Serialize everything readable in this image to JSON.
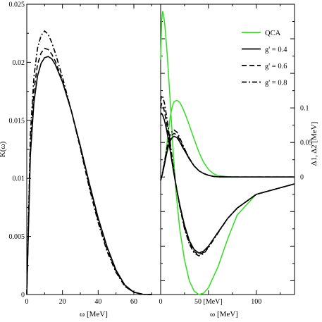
{
  "chart_data": [
    {
      "type": "line",
      "xlabel": "ω [MeV]",
      "ylabel": "K(ω)",
      "xlim": [
        0,
        75
      ],
      "ylim": [
        0,
        0.025
      ],
      "x_ticks": [
        0,
        20,
        40,
        60
      ],
      "x_tick_labels": [
        "0",
        "20",
        "40",
        "60"
      ],
      "y_ticks": [
        0,
        0.005,
        0.01,
        0.015,
        0.02,
        0.025
      ],
      "y_tick_labels": [
        "0",
        "0.005",
        "0.01",
        "0.015",
        "0.02",
        "0.025"
      ],
      "grid": false,
      "series": [
        {
          "name": "g' = 0.4",
          "color": "#000000",
          "dash": "solid",
          "x": [
            0,
            2,
            4,
            6,
            8,
            10,
            12,
            14,
            16,
            20,
            25,
            30,
            35,
            40,
            45,
            50,
            55,
            60,
            65,
            70
          ],
          "y": [
            0,
            0.012,
            0.0165,
            0.0188,
            0.0199,
            0.0204,
            0.0205,
            0.0203,
            0.0198,
            0.0183,
            0.0158,
            0.0128,
            0.0096,
            0.0066,
            0.0041,
            0.0021,
            0.0008,
            0.0002,
            2e-05,
            0
          ]
        },
        {
          "name": "g' = 0.6",
          "color": "#000000",
          "dash": "dashed",
          "x": [
            0,
            2,
            4,
            6,
            8,
            10,
            12,
            14,
            16,
            20,
            25,
            30,
            35,
            40,
            45,
            50,
            55,
            60,
            65,
            70
          ],
          "y": [
            0,
            0.0128,
            0.0175,
            0.0198,
            0.0208,
            0.0212,
            0.0211,
            0.0207,
            0.0201,
            0.0184,
            0.0158,
            0.0127,
            0.0094,
            0.0064,
            0.0039,
            0.002,
            0.0007,
            0.0002,
            2e-05,
            0
          ]
        },
        {
          "name": "g' = 0.8",
          "color": "#000000",
          "dash": "dashdot",
          "x": [
            0,
            2,
            4,
            6,
            8,
            10,
            12,
            14,
            16,
            20,
            25,
            30,
            35,
            40,
            45,
            50,
            55,
            60,
            65,
            70
          ],
          "y": [
            0,
            0.0138,
            0.0187,
            0.0212,
            0.0223,
            0.0227,
            0.0224,
            0.0217,
            0.0208,
            0.0187,
            0.0158,
            0.0126,
            0.0092,
            0.0062,
            0.0037,
            0.0019,
            0.0007,
            0.0002,
            2e-05,
            0
          ]
        }
      ]
    },
    {
      "type": "line",
      "xlabel": "ω [MeV]",
      "ylabel": "Δ1, Δ2 [MeV]",
      "xlim": [
        0,
        140
      ],
      "ylim": [
        -0.17,
        0.25
      ],
      "x_ticks": [
        0,
        50,
        100
      ],
      "x_tick_labels": [
        "0",
        "50 [MeV]",
        "100"
      ],
      "y_ticks": [
        0,
        0.05,
        0.1
      ],
      "y_tick_labels": [
        "0",
        "0.05",
        "0.1"
      ],
      "grid": false,
      "legend_position": "top-right",
      "series": [
        {
          "name": "QCA",
          "color": "#33dd22",
          "dash": "solid",
          "x": [
            0,
            1,
            2,
            3,
            4,
            5,
            7,
            10,
            13,
            16,
            20,
            25,
            30,
            35,
            40,
            45,
            50,
            60,
            70,
            80,
            100,
            140
          ],
          "y": [
            0.17,
            0.225,
            0.24,
            0.235,
            0.225,
            0.21,
            0.175,
            0.11,
            0.04,
            -0.02,
            -0.075,
            -0.12,
            -0.15,
            -0.165,
            -0.17,
            -0.168,
            -0.16,
            -0.13,
            -0.09,
            -0.055,
            -0.025,
            -0.01
          ],
          "x2": [
            0,
            2,
            4,
            6,
            8,
            10,
            12,
            14,
            17,
            20,
            23,
            26,
            30,
            35,
            40,
            45,
            50,
            55,
            60,
            70,
            80,
            100,
            140
          ],
          "y2": [
            -0.005,
            0.005,
            0.02,
            0.04,
            0.065,
            0.087,
            0.101,
            0.109,
            0.111,
            0.108,
            0.1,
            0.09,
            0.075,
            0.055,
            0.036,
            0.021,
            0.011,
            0.005,
            0.002,
            0.0005,
            0,
            0,
            0
          ]
        },
        {
          "name": "g' = 0.4",
          "color": "#000000",
          "dash": "solid",
          "x": [
            0,
            1,
            2,
            4,
            6,
            8,
            10,
            13,
            16,
            20,
            25,
            30,
            35,
            40,
            45,
            50,
            60,
            70,
            80,
            100,
            140
          ],
          "y": [
            0.09,
            0.092,
            0.09,
            0.082,
            0.07,
            0.055,
            0.038,
            0.012,
            -0.012,
            -0.04,
            -0.07,
            -0.092,
            -0.105,
            -0.11,
            -0.107,
            -0.1,
            -0.08,
            -0.06,
            -0.045,
            -0.025,
            -0.01
          ],
          "x2": [
            0,
            2,
            4,
            6,
            8,
            10,
            12,
            14,
            17,
            20,
            23,
            26,
            30,
            35,
            40,
            45,
            50,
            55,
            60,
            70,
            80,
            100,
            140
          ],
          "y2": [
            -0.005,
            0.005,
            0.018,
            0.032,
            0.044,
            0.052,
            0.057,
            0.059,
            0.057,
            0.051,
            0.043,
            0.036,
            0.026,
            0.016,
            0.009,
            0.005,
            0.0025,
            0.001,
            0.0003,
            0,
            0,
            0,
            0
          ]
        },
        {
          "name": "g' = 0.6",
          "color": "#000000",
          "dash": "dashed",
          "x": [
            0,
            1,
            2,
            4,
            6,
            8,
            10,
            13,
            16,
            20,
            25,
            30,
            35,
            40,
            45,
            50,
            60,
            70,
            80,
            100,
            140
          ],
          "y": [
            0.1,
            0.106,
            0.104,
            0.095,
            0.08,
            0.063,
            0.044,
            0.015,
            -0.012,
            -0.042,
            -0.073,
            -0.095,
            -0.108,
            -0.112,
            -0.109,
            -0.101,
            -0.08,
            -0.06,
            -0.045,
            -0.025,
            -0.01
          ],
          "x2": [
            0,
            2,
            4,
            6,
            8,
            10,
            12,
            14,
            17,
            20,
            23,
            26,
            30,
            35,
            40,
            45,
            50,
            55,
            60,
            70,
            80,
            100,
            140
          ],
          "y2": [
            -0.005,
            0.006,
            0.02,
            0.035,
            0.048,
            0.056,
            0.061,
            0.063,
            0.061,
            0.054,
            0.045,
            0.037,
            0.027,
            0.016,
            0.009,
            0.005,
            0.0025,
            0.001,
            0.0003,
            0,
            0,
            0,
            0
          ]
        },
        {
          "name": "g' = 0.8",
          "color": "#000000",
          "dash": "dashdot",
          "x": [
            0,
            1,
            2,
            4,
            6,
            8,
            10,
            13,
            16,
            20,
            25,
            30,
            35,
            40,
            45,
            50,
            60,
            70,
            80,
            100,
            140
          ],
          "y": [
            0.11,
            0.118,
            0.117,
            0.107,
            0.09,
            0.071,
            0.05,
            0.018,
            -0.011,
            -0.043,
            -0.075,
            -0.097,
            -0.11,
            -0.114,
            -0.111,
            -0.102,
            -0.081,
            -0.06,
            -0.045,
            -0.025,
            -0.01
          ],
          "x2": [
            0,
            2,
            4,
            6,
            8,
            10,
            12,
            14,
            17,
            20,
            23,
            26,
            30,
            35,
            40,
            45,
            50,
            55,
            60,
            70,
            80,
            100,
            140
          ],
          "y2": [
            -0.005,
            0.007,
            0.022,
            0.038,
            0.052,
            0.061,
            0.066,
            0.068,
            0.065,
            0.057,
            0.047,
            0.038,
            0.027,
            0.016,
            0.009,
            0.005,
            0.0025,
            0.001,
            0.0003,
            0,
            0,
            0,
            0
          ]
        }
      ]
    }
  ]
}
